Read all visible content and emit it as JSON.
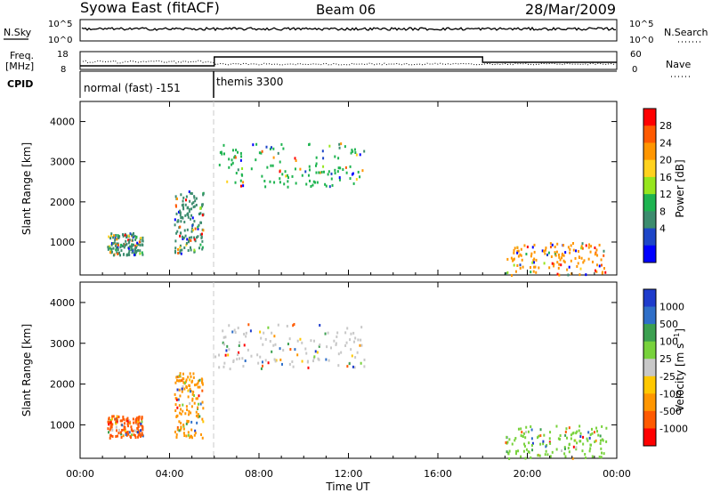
{
  "header": {
    "title": "Syowa East (fitACF)",
    "beam": "Beam 06",
    "date": "28/Mar/2009"
  },
  "top_panels": {
    "nsky_label": "N.Sky",
    "nsearch_label": "N.Search",
    "nsky_ticks": [
      "10^5",
      "10^0"
    ],
    "freq_label_line1": "Freq.",
    "freq_label_line2": "[MHz]",
    "freq_ticks": [
      "18",
      "8"
    ],
    "nave_label": "Nave",
    "nave_ticks": [
      "60",
      "0"
    ],
    "cpid_label": "CPID",
    "modes": [
      {
        "name": "normal (fast) -151",
        "start_hour": 0,
        "end_hour": 6
      },
      {
        "name": "themis 3300",
        "start_hour": 6,
        "end_hour": 24
      }
    ]
  },
  "chart_data": [
    {
      "type": "heatmap",
      "panel": "power",
      "ylabel": "Slant Range [km]",
      "xlabel": "Time UT",
      "xlim": [
        0,
        24
      ],
      "ylim": [
        180,
        4500
      ],
      "x_ticks": [
        "00:00",
        "04:00",
        "08:00",
        "12:00",
        "16:00",
        "20:00",
        "00:00"
      ],
      "y_ticks": [
        1000,
        2000,
        3000,
        4000
      ],
      "colorbar": {
        "label": "Power [dB]",
        "ticks": [
          "28",
          "24",
          "20",
          "16",
          "12",
          "8",
          "4"
        ],
        "colors": [
          "#ff0000",
          "#ff5a00",
          "#ff9600",
          "#ffd21e",
          "#96e61e",
          "#1eb450",
          "#3c8c6e",
          "#1e46c8",
          "#0000ff"
        ]
      },
      "echo_regions": [
        {
          "t_start": 1.2,
          "t_end": 2.8,
          "r_start": 700,
          "r_end": 1250,
          "level": "8"
        },
        {
          "t_start": 4.2,
          "t_end": 5.5,
          "r_start": 700,
          "r_end": 2300,
          "level": "8"
        },
        {
          "t_start": 6.0,
          "t_end": 12.7,
          "r_start": 2400,
          "r_end": 3500,
          "level": "12"
        },
        {
          "t_start": 19.0,
          "t_end": 23.5,
          "r_start": 200,
          "r_end": 1000,
          "level": "24"
        }
      ]
    },
    {
      "type": "heatmap",
      "panel": "velocity",
      "ylabel": "Slant Range [km]",
      "xlabel": "Time UT",
      "xlim": [
        0,
        24
      ],
      "ylim": [
        180,
        4500
      ],
      "x_ticks": [
        "00:00",
        "04:00",
        "08:00",
        "12:00",
        "16:00",
        "20:00",
        "00:00"
      ],
      "y_ticks": [
        1000,
        2000,
        3000,
        4000
      ],
      "colorbar": {
        "label": "Velocity [m s^-1]",
        "ticks": [
          "1000",
          "500",
          "100",
          "25",
          "-25",
          "-100",
          "-500",
          "-1000"
        ],
        "colors": [
          "#1e3ccc",
          "#2f6fc8",
          "#3ca050",
          "#78d23c",
          "#c8c8c8",
          "#ffc800",
          "#ff9600",
          "#ff5a00",
          "#ff0000"
        ]
      },
      "echo_regions": [
        {
          "t_start": 1.2,
          "t_end": 2.8,
          "r_start": 700,
          "r_end": 1250,
          "level": "-500"
        },
        {
          "t_start": 4.2,
          "t_end": 5.5,
          "r_start": 700,
          "r_end": 2300,
          "level": "-100"
        },
        {
          "t_start": 6.0,
          "t_end": 12.7,
          "r_start": 2400,
          "r_end": 3500,
          "level": "25"
        },
        {
          "t_start": 19.0,
          "t_end": 23.5,
          "r_start": 200,
          "r_end": 1000,
          "level": "100"
        }
      ]
    }
  ]
}
